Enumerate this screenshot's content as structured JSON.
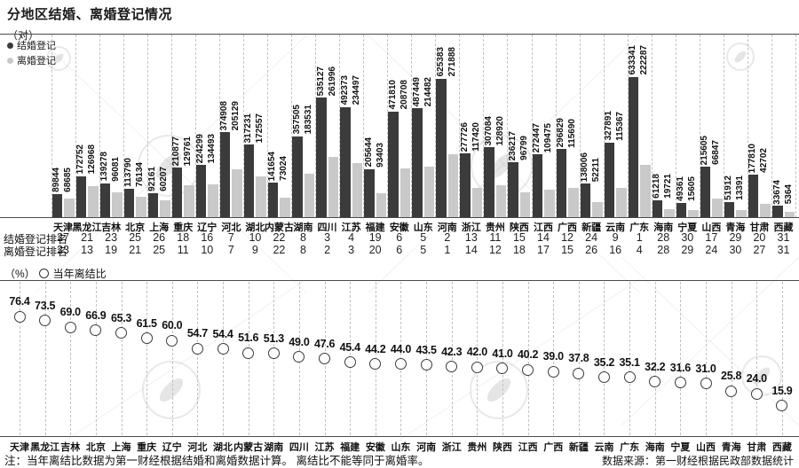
{
  "title": "分地区结婚、离婚登记情况",
  "bar_section": {
    "unit_label": "（对）",
    "legend": [
      {
        "name": "结婚登记",
        "color": "#3b3b3b"
      },
      {
        "name": "离婚登记",
        "color": "#c9c9c9"
      }
    ],
    "marriage_rank_label": "结婚登记排名",
    "divorce_rank_label": "离婚登记排名"
  },
  "ratio_section": {
    "unit_label": "（%）",
    "legend_label": "当年离结比"
  },
  "footer": {
    "note": "注：当年离结比数据为第一财经根据结婚和离婚数据计算。 离结比不能等同于离婚率。",
    "source": "数据来源：第一财经根据民政部数据统计"
  },
  "colors": {
    "marriage_bar": "#3b3b3b",
    "divorce_bar": "#c9c9c9",
    "axis": "#4a4a4a",
    "grid": "#c2c2c2"
  },
  "chart_data": [
    {
      "type": "bar",
      "title": "分地区结婚、离婚登记情况",
      "ylabel": "对",
      "legend_position": "top-left",
      "grid": "vertical-dashed",
      "categories": [
        "天津",
        "黑龙江",
        "吉林",
        "北京",
        "上海",
        "重庆",
        "辽宁",
        "河北",
        "湖北",
        "内蒙古",
        "湖南",
        "四川",
        "江苏",
        "福建",
        "安徽",
        "山东",
        "河南",
        "浙江",
        "贵州",
        "陕西",
        "江西",
        "广西",
        "新疆",
        "云南",
        "广东",
        "海南",
        "宁夏",
        "山西",
        "青海",
        "甘肃",
        "西藏"
      ],
      "series": [
        {
          "name": "结婚登记",
          "values": [
            89844,
            172752,
            139278,
            113790,
            92161,
            210877,
            224299,
            374908,
            317231,
            141654,
            357505,
            535127,
            492373,
            205644,
            471810,
            487449,
            625383,
            277726,
            307084,
            236217,
            272447,
            296829,
            138006,
            327891,
            633341,
            61218,
            49361,
            215605,
            51912,
            177810,
            33674
          ]
        },
        {
          "name": "离婚登记",
          "values": [
            68685,
            126968,
            96081,
            76134,
            60207,
            129761,
            134493,
            205129,
            172557,
            73024,
            183531,
            261996,
            234497,
            93403,
            208708,
            214482,
            271888,
            117420,
            128920,
            96799,
            109475,
            115690,
            52211,
            115367,
            222287,
            19721,
            15605,
            66847,
            13391,
            42702,
            5364
          ]
        }
      ],
      "marriage_rank": [
        27,
        21,
        23,
        25,
        26,
        18,
        16,
        7,
        10,
        22,
        8,
        3,
        4,
        19,
        6,
        5,
        2,
        13,
        11,
        15,
        14,
        12,
        24,
        9,
        1,
        28,
        30,
        17,
        29,
        20,
        31
      ],
      "divorce_rank": [
        23,
        13,
        19,
        21,
        25,
        11,
        10,
        7,
        9,
        22,
        8,
        2,
        3,
        20,
        6,
        5,
        1,
        14,
        12,
        18,
        17,
        15,
        26,
        16,
        4,
        28,
        29,
        24,
        30,
        27,
        31
      ]
    },
    {
      "type": "scatter",
      "title": "当年离结比",
      "ylabel": "%",
      "grid": "vertical-dashed",
      "categories": [
        "天津",
        "黑龙江",
        "吉林",
        "北京",
        "上海",
        "重庆",
        "辽宁",
        "河北",
        "湖北",
        "内蒙古",
        "湖南",
        "四川",
        "江苏",
        "福建",
        "安徽",
        "山东",
        "河南",
        "浙江",
        "贵州",
        "陕西",
        "江西",
        "广西",
        "新疆",
        "云南",
        "广东",
        "海南",
        "宁夏",
        "山西",
        "青海",
        "甘肃",
        "西藏"
      ],
      "values": [
        76.4,
        73.5,
        69.0,
        66.9,
        65.3,
        61.5,
        60.0,
        54.7,
        54.4,
        51.6,
        51.3,
        49.0,
        47.6,
        45.4,
        44.2,
        44.0,
        43.5,
        42.3,
        42.0,
        41.0,
        40.2,
        39.0,
        37.8,
        35.2,
        35.1,
        32.2,
        31.6,
        31.0,
        25.8,
        24.0,
        15.9
      ]
    }
  ]
}
